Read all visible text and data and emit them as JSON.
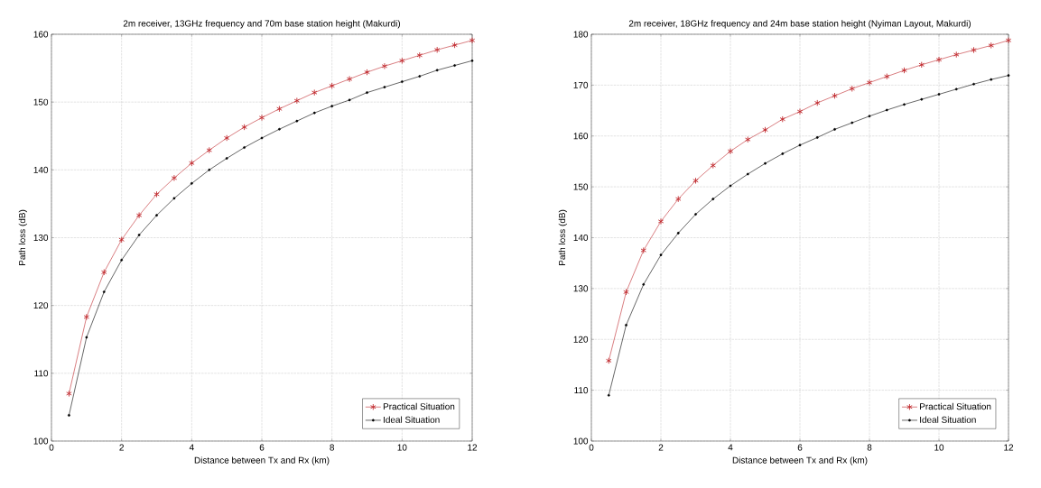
{
  "chart_data": [
    {
      "type": "line",
      "title": "2m receiver, 13GHz frequency and 70m base station height (Makurdi)",
      "xlabel": "Distance between Tx and Rx (km)",
      "ylabel": "Path loss (dB)",
      "x": [
        0.5,
        1,
        1.5,
        2,
        2.5,
        3,
        3.5,
        4,
        4.5,
        5,
        5.5,
        6,
        6.5,
        7,
        7.5,
        8,
        8.5,
        9,
        9.5,
        10,
        10.5,
        11,
        11.5,
        12
      ],
      "xlim": [
        0,
        12
      ],
      "ylim": [
        100,
        160
      ],
      "xticks": [
        0,
        2,
        4,
        6,
        8,
        10,
        12
      ],
      "yticks": [
        100,
        110,
        120,
        130,
        140,
        150,
        160
      ],
      "grid": true,
      "legend": "bottom right",
      "series": [
        {
          "name": "Practical Situation",
          "color": "#c0282d",
          "marker": "cross",
          "values": [
            107,
            118.3,
            124.9,
            129.7,
            133.3,
            136.4,
            138.8,
            141.0,
            142.9,
            144.7,
            146.3,
            147.7,
            149.0,
            150.2,
            151.4,
            152.4,
            153.4,
            154.4,
            155.3,
            156.1,
            156.9,
            157.7,
            158.4,
            159.1
          ]
        },
        {
          "name": "Ideal Situation",
          "color": "#000000",
          "marker": "circle",
          "values": [
            103.8,
            115.3,
            122.0,
            126.7,
            130.4,
            133.3,
            135.8,
            138.0,
            140.0,
            141.7,
            143.3,
            144.7,
            146.0,
            147.2,
            148.4,
            149.4,
            150.3,
            151.4,
            152.2,
            153.0,
            153.8,
            154.7,
            155.4,
            156.1
          ]
        }
      ]
    },
    {
      "type": "line",
      "title": "2m receiver, 18GHz frequency and 24m base station height (Nyiman Layout, Makurdi)",
      "xlabel": "Distance between Tx and Rx (km)",
      "ylabel": "Path loss (dB)",
      "x": [
        0.5,
        1,
        1.5,
        2,
        2.5,
        3,
        3.5,
        4,
        4.5,
        5,
        5.5,
        6,
        6.5,
        7,
        7.5,
        8,
        8.5,
        9,
        9.5,
        10,
        10.5,
        11,
        11.5,
        12
      ],
      "xlim": [
        0,
        12
      ],
      "ylim": [
        100,
        180
      ],
      "xticks": [
        0,
        2,
        4,
        6,
        8,
        10,
        12
      ],
      "yticks": [
        100,
        110,
        120,
        130,
        140,
        150,
        160,
        170,
        180
      ],
      "grid": true,
      "legend": "bottom right",
      "series": [
        {
          "name": "Practical Situation",
          "color": "#c0282d",
          "marker": "cross",
          "values": [
            115.8,
            129.3,
            137.5,
            143.2,
            147.6,
            151.2,
            154.2,
            157.0,
            159.3,
            161.2,
            163.3,
            164.8,
            166.5,
            167.9,
            169.3,
            170.5,
            171.7,
            172.9,
            174.0,
            175.0,
            176.0,
            176.9,
            177.8,
            178.8
          ]
        },
        {
          "name": "Ideal Situation",
          "color": "#000000",
          "marker": "circle",
          "values": [
            109,
            122.8,
            130.8,
            136.6,
            140.9,
            144.6,
            147.6,
            150.2,
            152.5,
            154.6,
            156.5,
            158.2,
            159.7,
            161.3,
            162.6,
            163.9,
            165.1,
            166.2,
            167.2,
            168.2,
            169.2,
            170.2,
            171.1,
            171.9
          ]
        }
      ]
    }
  ]
}
